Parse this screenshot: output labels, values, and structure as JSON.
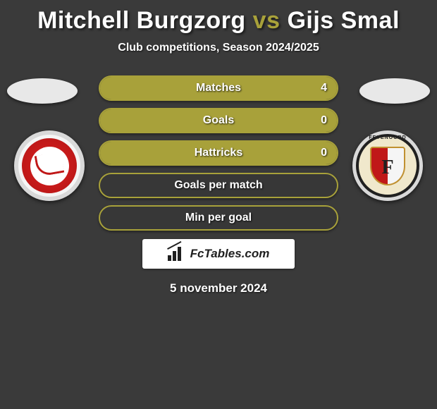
{
  "title": {
    "player1": "Mitchell Burgzorg",
    "vs": "vs",
    "player2": "Gijs Smal"
  },
  "subtitle": "Club competitions, Season 2024/2025",
  "clubs": {
    "left": {
      "name": "Almere City",
      "logo_bg": "#d9d9d9",
      "primary": "#c01818"
    },
    "right": {
      "name": "Feyenoord",
      "logo_bg": "#d9d9d9",
      "primary": "#c01818",
      "letter": "F"
    }
  },
  "stats": {
    "bar_border": "#a8a13a",
    "bar_fill": "#a8a13a",
    "rows": [
      {
        "label": "Matches",
        "left": "",
        "right": "4",
        "fill_pct": 100
      },
      {
        "label": "Goals",
        "left": "",
        "right": "0",
        "fill_pct": 100
      },
      {
        "label": "Hattricks",
        "left": "",
        "right": "0",
        "fill_pct": 100
      },
      {
        "label": "Goals per match",
        "left": "",
        "right": "",
        "fill_pct": 0
      },
      {
        "label": "Min per goal",
        "left": "",
        "right": "",
        "fill_pct": 0
      }
    ]
  },
  "watermark": {
    "text": "FcTables.com"
  },
  "date": "5 november 2024",
  "colors": {
    "background": "#3a3a3a",
    "title_white": "#ffffff",
    "accent": "#a8a13a"
  }
}
